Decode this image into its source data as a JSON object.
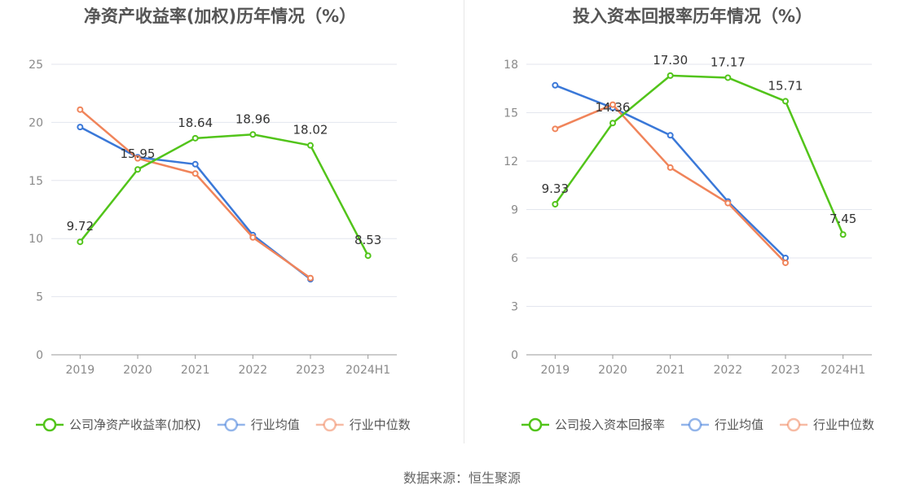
{
  "source_text": "数据来源：恒生聚源",
  "chart_data": [
    {
      "type": "line",
      "title": "净资产收益率(加权)历年情况（%）",
      "categories": [
        "2019",
        "2020",
        "2021",
        "2022",
        "2023",
        "2024H1"
      ],
      "yticks": [
        "0",
        "5",
        "10",
        "15",
        "20",
        "25"
      ],
      "ylim": [
        0,
        25
      ],
      "grid": true,
      "legend_position": "bottom",
      "series": [
        {
          "name": "公司净资产收益率(加权)",
          "color": "#52c41a",
          "values": [
            9.72,
            15.95,
            18.64,
            18.96,
            18.02,
            8.53
          ],
          "labels": [
            "9.72",
            "15.95",
            "18.64",
            "18.96",
            "18.02",
            "8.53"
          ]
        },
        {
          "name": "行业均值",
          "color": "#3a78d8",
          "values": [
            19.6,
            17.0,
            16.4,
            10.3,
            6.5,
            null
          ]
        },
        {
          "name": "行业中位数",
          "color": "#f0845a",
          "values": [
            21.1,
            16.9,
            15.6,
            10.1,
            6.6,
            null
          ]
        }
      ]
    },
    {
      "type": "line",
      "title": "投入资本回报率历年情况（%）",
      "categories": [
        "2019",
        "2020",
        "2021",
        "2022",
        "2023",
        "2024H1"
      ],
      "yticks": [
        "0",
        "3",
        "6",
        "9",
        "12",
        "15",
        "18"
      ],
      "ylim": [
        0,
        18
      ],
      "grid": true,
      "legend_position": "bottom",
      "series": [
        {
          "name": "公司投入资本回报率",
          "color": "#52c41a",
          "values": [
            9.33,
            14.36,
            17.3,
            17.17,
            15.71,
            7.45
          ],
          "labels": [
            "9.33",
            "14.36",
            "17.30",
            "17.17",
            "15.71",
            "7.45"
          ]
        },
        {
          "name": "行业均值",
          "color": "#3a78d8",
          "values": [
            16.7,
            15.3,
            13.6,
            9.5,
            6.0,
            null
          ]
        },
        {
          "name": "行业中位数",
          "color": "#f0845a",
          "values": [
            14.0,
            15.5,
            11.6,
            9.4,
            5.7,
            null
          ]
        }
      ]
    }
  ]
}
